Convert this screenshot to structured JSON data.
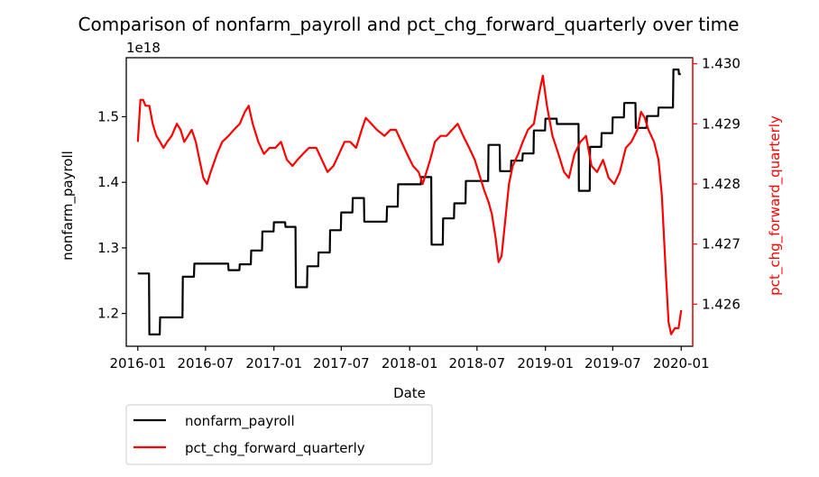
{
  "chart_data": {
    "type": "line",
    "title": "Comparison of nonfarm_payroll and pct_chg_forward_quarterly over time",
    "xlabel": "Date",
    "ylabel_left": "nonfarm_payroll",
    "ylabel_right": "pct_chg_forward_quarterly",
    "left_offset_text": "1e18",
    "x_tick_labels": [
      "2016-01",
      "2016-07",
      "2017-01",
      "2017-07",
      "2018-01",
      "2018-07",
      "2019-01",
      "2019-07",
      "2020-01"
    ],
    "x_range": [
      "2015-12-01",
      "2020-02-01"
    ],
    "y_left_ticks": [
      "1.2",
      "1.3",
      "1.4",
      "1.5"
    ],
    "y_left_range": [
      1.15,
      1.59
    ],
    "y_right_ticks": [
      "1.426",
      "1.427",
      "1.428",
      "1.429",
      "1.430"
    ],
    "y_right_range": [
      1.4253,
      1.4301
    ],
    "grid": false,
    "legend_position": "below-left",
    "colors": {
      "left": "#000000",
      "right": "#ff0000"
    },
    "series": [
      {
        "name": "nonfarm_payroll",
        "axis": "left",
        "color": "#000000",
        "points": [
          [
            "2016-01-01",
            1.261
          ],
          [
            "2016-01-31",
            1.261
          ],
          [
            "2016-02-01",
            1.168
          ],
          [
            "2016-02-29",
            1.168
          ],
          [
            "2016-03-01",
            1.194
          ],
          [
            "2016-04-30",
            1.194
          ],
          [
            "2016-05-01",
            1.256
          ],
          [
            "2016-05-31",
            1.256
          ],
          [
            "2016-06-01",
            1.276
          ],
          [
            "2016-08-31",
            1.276
          ],
          [
            "2016-09-01",
            1.266
          ],
          [
            "2016-09-30",
            1.266
          ],
          [
            "2016-10-01",
            1.275
          ],
          [
            "2016-10-31",
            1.275
          ],
          [
            "2016-11-01",
            1.296
          ],
          [
            "2016-11-30",
            1.296
          ],
          [
            "2016-12-01",
            1.325
          ],
          [
            "2016-12-31",
            1.325
          ],
          [
            "2017-01-01",
            1.339
          ],
          [
            "2017-01-31",
            1.339
          ],
          [
            "2017-02-01",
            1.332
          ],
          [
            "2017-02-28",
            1.332
          ],
          [
            "2017-03-01",
            1.24
          ],
          [
            "2017-03-31",
            1.24
          ],
          [
            "2017-04-01",
            1.272
          ],
          [
            "2017-04-30",
            1.272
          ],
          [
            "2017-05-01",
            1.293
          ],
          [
            "2017-05-31",
            1.293
          ],
          [
            "2017-06-01",
            1.327
          ],
          [
            "2017-06-30",
            1.327
          ],
          [
            "2017-07-01",
            1.354
          ],
          [
            "2017-07-31",
            1.354
          ],
          [
            "2017-08-01",
            1.376
          ],
          [
            "2017-08-31",
            1.376
          ],
          [
            "2017-09-01",
            1.34
          ],
          [
            "2017-10-31",
            1.34
          ],
          [
            "2017-11-01",
            1.363
          ],
          [
            "2017-11-30",
            1.363
          ],
          [
            "2017-12-01",
            1.397
          ],
          [
            "2018-01-31",
            1.397
          ],
          [
            "2018-02-01",
            1.408
          ],
          [
            "2018-02-28",
            1.408
          ],
          [
            "2018-03-01",
            1.305
          ],
          [
            "2018-03-31",
            1.305
          ],
          [
            "2018-04-01",
            1.345
          ],
          [
            "2018-04-30",
            1.345
          ],
          [
            "2018-05-01",
            1.368
          ],
          [
            "2018-05-31",
            1.368
          ],
          [
            "2018-06-01",
            1.402
          ],
          [
            "2018-07-31",
            1.402
          ],
          [
            "2018-08-01",
            1.457
          ],
          [
            "2018-08-31",
            1.457
          ],
          [
            "2018-09-01",
            1.417
          ],
          [
            "2018-09-30",
            1.417
          ],
          [
            "2018-10-01",
            1.433
          ],
          [
            "2018-10-31",
            1.433
          ],
          [
            "2018-11-01",
            1.444
          ],
          [
            "2018-11-30",
            1.444
          ],
          [
            "2018-12-01",
            1.479
          ],
          [
            "2018-12-31",
            1.479
          ],
          [
            "2019-01-01",
            1.497
          ],
          [
            "2019-01-31",
            1.497
          ],
          [
            "2019-02-01",
            1.489
          ],
          [
            "2019-03-31",
            1.489
          ],
          [
            "2019-04-01",
            1.387
          ],
          [
            "2019-04-30",
            1.387
          ],
          [
            "2019-05-01",
            1.454
          ],
          [
            "2019-05-31",
            1.454
          ],
          [
            "2019-06-01",
            1.475
          ],
          [
            "2019-06-30",
            1.475
          ],
          [
            "2019-07-01",
            1.499
          ],
          [
            "2019-07-31",
            1.499
          ],
          [
            "2019-08-01",
            1.521
          ],
          [
            "2019-08-31",
            1.521
          ],
          [
            "2019-09-01",
            1.483
          ],
          [
            "2019-09-30",
            1.483
          ],
          [
            "2019-10-01",
            1.501
          ],
          [
            "2019-10-31",
            1.501
          ],
          [
            "2019-11-01",
            1.514
          ],
          [
            "2019-12-10",
            1.514
          ],
          [
            "2019-12-11",
            1.572
          ],
          [
            "2019-12-25",
            1.572
          ],
          [
            "2019-12-26",
            1.565
          ],
          [
            "2019-12-31",
            1.565
          ]
        ]
      },
      {
        "name": "pct_chg_forward_quarterly",
        "axis": "right",
        "color": "#ff0000",
        "points": [
          [
            "2016-01-01",
            1.4287
          ],
          [
            "2016-01-08",
            1.4294
          ],
          [
            "2016-01-15",
            1.4294
          ],
          [
            "2016-01-22",
            1.4293
          ],
          [
            "2016-02-01",
            1.4293
          ],
          [
            "2016-02-10",
            1.429
          ],
          [
            "2016-02-20",
            1.4288
          ],
          [
            "2016-03-01",
            1.4287
          ],
          [
            "2016-03-10",
            1.4286
          ],
          [
            "2016-03-20",
            1.4287
          ],
          [
            "2016-04-01",
            1.4288
          ],
          [
            "2016-04-15",
            1.429
          ],
          [
            "2016-04-25",
            1.4289
          ],
          [
            "2016-05-05",
            1.4287
          ],
          [
            "2016-05-15",
            1.4288
          ],
          [
            "2016-05-25",
            1.4289
          ],
          [
            "2016-06-05",
            1.4287
          ],
          [
            "2016-06-15",
            1.4284
          ],
          [
            "2016-06-25",
            1.4281
          ],
          [
            "2016-07-05",
            1.428
          ],
          [
            "2016-07-15",
            1.4282
          ],
          [
            "2016-08-01",
            1.4285
          ],
          [
            "2016-08-15",
            1.4287
          ],
          [
            "2016-09-01",
            1.4288
          ],
          [
            "2016-09-15",
            1.4289
          ],
          [
            "2016-10-01",
            1.429
          ],
          [
            "2016-10-15",
            1.4292
          ],
          [
            "2016-10-25",
            1.4293
          ],
          [
            "2016-11-05",
            1.429
          ],
          [
            "2016-11-20",
            1.4287
          ],
          [
            "2016-12-05",
            1.4285
          ],
          [
            "2016-12-20",
            1.4286
          ],
          [
            "2017-01-05",
            1.4286
          ],
          [
            "2017-01-20",
            1.4287
          ],
          [
            "2017-02-05",
            1.4284
          ],
          [
            "2017-02-20",
            1.4283
          ],
          [
            "2017-03-05",
            1.4284
          ],
          [
            "2017-03-20",
            1.4285
          ],
          [
            "2017-04-05",
            1.4286
          ],
          [
            "2017-04-25",
            1.4286
          ],
          [
            "2017-05-10",
            1.4284
          ],
          [
            "2017-05-25",
            1.4282
          ],
          [
            "2017-06-10",
            1.4283
          ],
          [
            "2017-06-25",
            1.4285
          ],
          [
            "2017-07-10",
            1.4287
          ],
          [
            "2017-07-25",
            1.4287
          ],
          [
            "2017-08-10",
            1.4286
          ],
          [
            "2017-08-25",
            1.4289
          ],
          [
            "2017-09-05",
            1.4291
          ],
          [
            "2017-09-20",
            1.429
          ],
          [
            "2017-10-05",
            1.4289
          ],
          [
            "2017-10-25",
            1.4288
          ],
          [
            "2017-11-10",
            1.4289
          ],
          [
            "2017-11-25",
            1.4289
          ],
          [
            "2017-12-10",
            1.4287
          ],
          [
            "2017-12-25",
            1.4285
          ],
          [
            "2018-01-10",
            1.4283
          ],
          [
            "2018-01-25",
            1.4282
          ],
          [
            "2018-02-05",
            1.428
          ],
          [
            "2018-02-15",
            1.4282
          ],
          [
            "2018-02-25",
            1.4284
          ],
          [
            "2018-03-10",
            1.4287
          ],
          [
            "2018-03-25",
            1.4288
          ],
          [
            "2018-04-10",
            1.4288
          ],
          [
            "2018-04-25",
            1.4289
          ],
          [
            "2018-05-10",
            1.429
          ],
          [
            "2018-05-25",
            1.4288
          ],
          [
            "2018-06-10",
            1.4286
          ],
          [
            "2018-06-25",
            1.4284
          ],
          [
            "2018-07-10",
            1.4281
          ],
          [
            "2018-07-20",
            1.4279
          ],
          [
            "2018-08-01",
            1.4277
          ],
          [
            "2018-08-10",
            1.4275
          ],
          [
            "2018-08-20",
            1.4271
          ],
          [
            "2018-08-28",
            1.4267
          ],
          [
            "2018-09-05",
            1.4268
          ],
          [
            "2018-09-15",
            1.4274
          ],
          [
            "2018-09-25",
            1.428
          ],
          [
            "2018-10-05",
            1.4283
          ],
          [
            "2018-10-20",
            1.4285
          ],
          [
            "2018-11-01",
            1.4287
          ],
          [
            "2018-11-15",
            1.4289
          ],
          [
            "2018-12-01",
            1.429
          ],
          [
            "2018-12-15",
            1.4295
          ],
          [
            "2018-12-25",
            1.4298
          ],
          [
            "2019-01-05",
            1.4293
          ],
          [
            "2019-01-20",
            1.4288
          ],
          [
            "2019-02-05",
            1.4285
          ],
          [
            "2019-02-20",
            1.4282
          ],
          [
            "2019-03-05",
            1.4281
          ],
          [
            "2019-03-20",
            1.4285
          ],
          [
            "2019-04-05",
            1.4287
          ],
          [
            "2019-04-20",
            1.4288
          ],
          [
            "2019-05-05",
            1.4283
          ],
          [
            "2019-05-20",
            1.4282
          ],
          [
            "2019-06-05",
            1.4284
          ],
          [
            "2019-06-20",
            1.4281
          ],
          [
            "2019-07-05",
            1.428
          ],
          [
            "2019-07-20",
            1.4282
          ],
          [
            "2019-08-05",
            1.4286
          ],
          [
            "2019-08-20",
            1.4287
          ],
          [
            "2019-09-05",
            1.4289
          ],
          [
            "2019-09-15",
            1.4292
          ],
          [
            "2019-09-25",
            1.4291
          ],
          [
            "2019-10-05",
            1.4289
          ],
          [
            "2019-10-20",
            1.4287
          ],
          [
            "2019-11-01",
            1.4284
          ],
          [
            "2019-11-10",
            1.4278
          ],
          [
            "2019-11-20",
            1.4266
          ],
          [
            "2019-11-28",
            1.4257
          ],
          [
            "2019-12-05",
            1.4255
          ],
          [
            "2019-12-15",
            1.4256
          ],
          [
            "2019-12-25",
            1.4256
          ],
          [
            "2020-01-01",
            1.4259
          ]
        ]
      }
    ]
  }
}
